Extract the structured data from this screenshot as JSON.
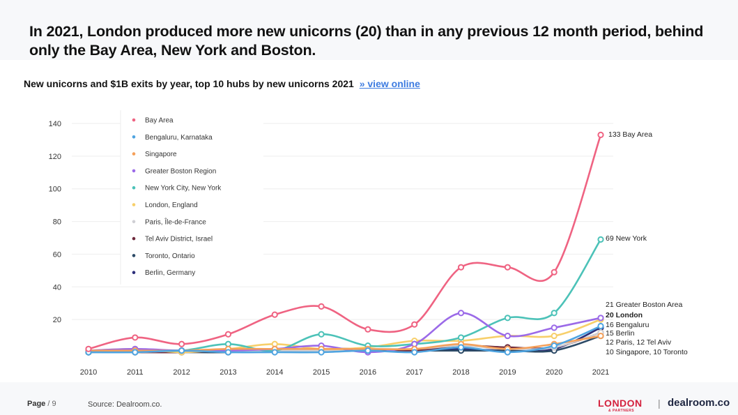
{
  "header": {
    "headline": "In 2021, London produced more new unicorns (20) than in any previous 12 month period, behind only the Bay Area, New York and Boston."
  },
  "subtitle": {
    "text": "New unicorns and $1B exits by year, top 10 hubs by new unicorns 2021",
    "link": "» view online"
  },
  "footer": {
    "page_label": "Page",
    "page_number": "/ 9",
    "source": "Source: Dealroom.co.",
    "logo_london": "LONDON",
    "logo_partners": "& PARTNERS",
    "separator": "|",
    "logo_dealroom": "dealroom.co"
  },
  "chart_data": {
    "type": "line",
    "title": "New unicorns and $1B exits by year, top 10 hubs by new unicorns 2021",
    "xlabel": "",
    "ylabel": "",
    "x": [
      "2010",
      "2011",
      "2012",
      "2013",
      "2014",
      "2015",
      "2016",
      "2017",
      "2018",
      "2019",
      "2020",
      "2021"
    ],
    "ylim": [
      0,
      140
    ],
    "yticks": [
      20,
      40,
      60,
      80,
      100,
      120,
      140
    ],
    "grid": true,
    "legend_position": "top-left",
    "series": [
      {
        "name": "Bay Area",
        "color": "#ef6382",
        "values": [
          2,
          9,
          5,
          11,
          23,
          28,
          14,
          17,
          52,
          52,
          49,
          133
        ]
      },
      {
        "name": "Bengaluru, Karnataka",
        "color": "#4fa4e0",
        "values": [
          0,
          0,
          1,
          0,
          0,
          0,
          1,
          0,
          3,
          0,
          4,
          16
        ]
      },
      {
        "name": "Singapore",
        "color": "#f5a05a",
        "values": [
          1,
          1,
          1,
          2,
          2,
          2,
          2,
          2,
          5,
          2,
          5,
          10
        ]
      },
      {
        "name": "Greater Boston Region",
        "color": "#9b6ae8",
        "values": [
          1,
          2,
          1,
          1,
          2,
          4,
          0,
          5,
          24,
          10,
          15,
          21
        ]
      },
      {
        "name": "New York City, New York",
        "color": "#4cc2b8",
        "values": [
          0,
          1,
          1,
          5,
          1,
          11,
          4,
          5,
          9,
          21,
          24,
          69
        ]
      },
      {
        "name": "London, England",
        "color": "#f7cf6a",
        "values": [
          1,
          2,
          0,
          2,
          5,
          2,
          3,
          7,
          7,
          10,
          10,
          20
        ]
      },
      {
        "name": "Paris, Île-de-France",
        "color": "#cfcfd4",
        "values": [
          0,
          0,
          1,
          1,
          1,
          1,
          2,
          2,
          4,
          2,
          3,
          12
        ]
      },
      {
        "name": "Tel Aviv District, Israel",
        "color": "#6e2a3c",
        "values": [
          0,
          0,
          0,
          1,
          1,
          2,
          2,
          1,
          4,
          3,
          3,
          12
        ]
      },
      {
        "name": "Toronto, Ontario",
        "color": "#2c4a66",
        "values": [
          0,
          0,
          0,
          0,
          1,
          1,
          1,
          1,
          1,
          1,
          1,
          10
        ]
      },
      {
        "name": "Berlin, Germany",
        "color": "#2d2f7a",
        "values": [
          0,
          1,
          1,
          1,
          1,
          1,
          1,
          1,
          2,
          1,
          2,
          15
        ]
      }
    ],
    "end_labels": [
      {
        "text": "133 Bay Area",
        "value": 133,
        "bold": false
      },
      {
        "text": "69 New York",
        "value": 69,
        "bold": false
      },
      {
        "text": "21 Greater Boston Area",
        "value": 21,
        "bold": false
      },
      {
        "text": "20 London",
        "value": 20,
        "bold": true
      },
      {
        "text": "16 Bengaluru",
        "value": 16,
        "bold": false
      },
      {
        "text": "15 Berlin",
        "value": 15,
        "bold": false
      },
      {
        "text": "12 Paris, 12 Tel Aviv",
        "value": 12,
        "bold": false
      },
      {
        "text": "10 Singapore, 10 Toronto",
        "value": 10,
        "bold": false
      }
    ]
  }
}
